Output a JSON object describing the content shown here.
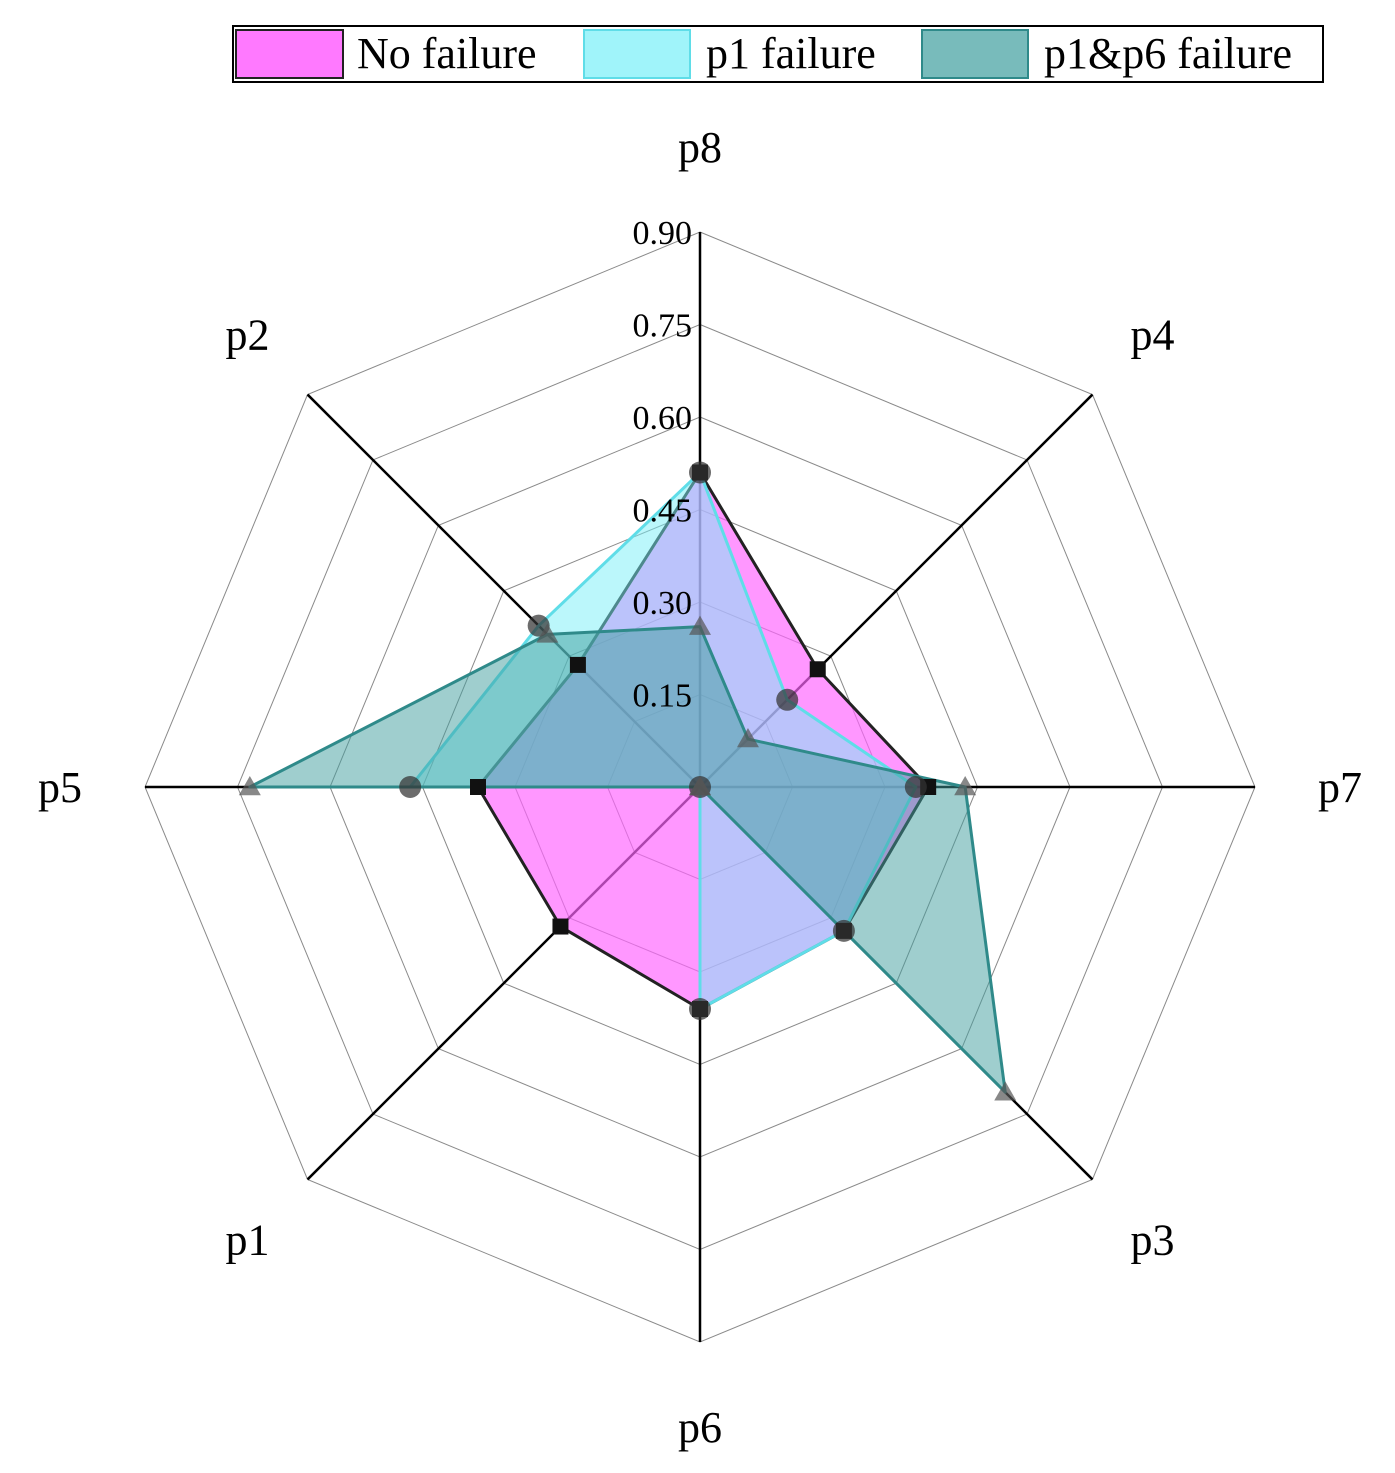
{
  "chart_data": {
    "type": "radar",
    "axes": [
      "p8",
      "p4",
      "p7",
      "p3",
      "p6",
      "p1",
      "p5",
      "p2"
    ],
    "radial_ticks": [
      "0.15",
      "0.30",
      "0.45",
      "0.60",
      "0.75",
      "0.90"
    ],
    "rlim": [
      0,
      0.9
    ],
    "grid": true,
    "legend_position": "top",
    "series": [
      {
        "name": "No failure",
        "marker": "square",
        "color": "#ff66ff",
        "values": [
          0.51,
          0.27,
          0.37,
          0.33,
          0.36,
          0.32,
          0.36,
          0.28
        ]
      },
      {
        "name": "p1 failure",
        "color": "#77f0f8",
        "marker": "square",
        "values": [
          0.51,
          0.2,
          0.35,
          0.33,
          0.36,
          0.0,
          0.47,
          0.37
        ]
      },
      {
        "name": "p1&p6 failure",
        "color": "#3f9e9e",
        "marker": "triangle",
        "values": [
          0.26,
          0.11,
          0.43,
          0.7,
          0.0,
          0.0,
          0.73,
          0.35
        ]
      }
    ]
  }
}
